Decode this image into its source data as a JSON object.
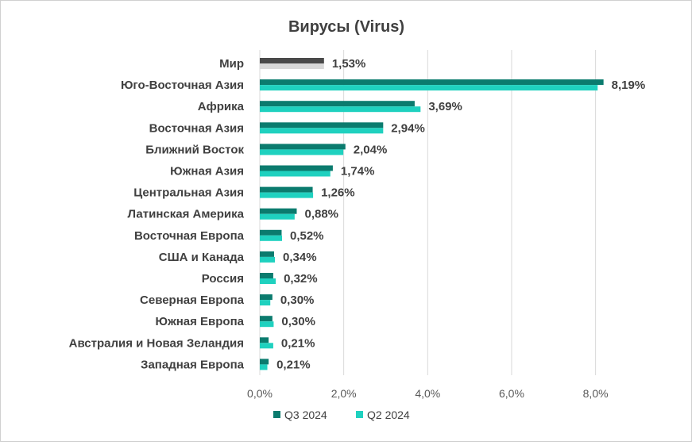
{
  "chart_data": {
    "type": "bar",
    "orientation": "horizontal",
    "title": "Вирусы (Virus)",
    "categories": [
      "Мир",
      "Юго-Восточная Азия",
      "Африка",
      "Восточная Азия",
      "Ближний Восток",
      "Южная Азия",
      "Центральная Азия",
      "Латинская Америка",
      "Восточная Европа",
      "США и Канада",
      "Россия",
      "Северная Европа",
      "Южная Европа",
      "Австралия и Новая Зеландия",
      "Западная Европа"
    ],
    "series": [
      {
        "name": "Q3 2024",
        "values": [
          1.53,
          8.19,
          3.69,
          2.94,
          2.04,
          1.74,
          1.26,
          0.88,
          0.52,
          0.34,
          0.32,
          0.3,
          0.3,
          0.21,
          0.21
        ],
        "color": "#0b7b6e",
        "world_color": "#4a4a4a"
      },
      {
        "name": "Q2 2024",
        "values": [
          1.53,
          8.05,
          3.83,
          2.94,
          1.99,
          1.68,
          1.27,
          0.83,
          0.53,
          0.36,
          0.38,
          0.25,
          0.33,
          0.32,
          0.18
        ],
        "color": "#1fd1bf",
        "world_color": "#d9d9d9"
      }
    ],
    "data_labels": [
      "1,53%",
      "8,19%",
      "3,69%",
      "2,94%",
      "2,04%",
      "1,74%",
      "1,26%",
      "0,88%",
      "0,52%",
      "0,34%",
      "0,32%",
      "0,30%",
      "0,30%",
      "0,21%",
      "0,21%"
    ],
    "x_ticks": [
      0,
      2,
      4,
      6,
      8
    ],
    "x_tick_labels": [
      "0,0%",
      "2,0%",
      "4,0%",
      "6,0%",
      "8,0%"
    ],
    "xlim": [
      0,
      9.2
    ],
    "grid": true,
    "legend_position": "bottom"
  }
}
